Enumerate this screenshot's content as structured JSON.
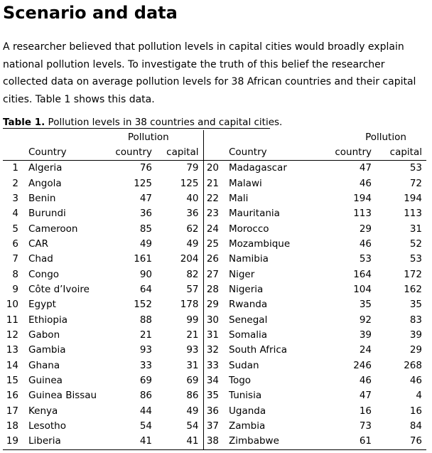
{
  "heading": "Scenario and data",
  "intro": "A researcher believed that pollution levels in capital cities would broadly explain national pollution levels. To investigate the truth of this belief the researcher collected data on average pollution levels for 38 African countries and their capital cities. Table 1 shows this data.",
  "table": {
    "caption_label": "Table 1.",
    "caption_text": " Pollution levels in 38 countries and capital cities.",
    "header_group": "Pollution",
    "col_country": "Country",
    "col_nat": "country",
    "col_cap": "capital",
    "left_rows": [
      {
        "n": "1",
        "name": "Algeria",
        "nat": "76",
        "cap": "79"
      },
      {
        "n": "2",
        "name": "Angola",
        "nat": "125",
        "cap": "125"
      },
      {
        "n": "3",
        "name": "Benin",
        "nat": "47",
        "cap": "40"
      },
      {
        "n": "4",
        "name": "Burundi",
        "nat": "36",
        "cap": "36"
      },
      {
        "n": "5",
        "name": "Cameroon",
        "nat": "85",
        "cap": "62"
      },
      {
        "n": "6",
        "name": "CAR",
        "nat": "49",
        "cap": "49"
      },
      {
        "n": "7",
        "name": "Chad",
        "nat": "161",
        "cap": "204"
      },
      {
        "n": "8",
        "name": "Congo",
        "nat": "90",
        "cap": "82"
      },
      {
        "n": "9",
        "name": "Côte d’Ivoire",
        "nat": "64",
        "cap": "57"
      },
      {
        "n": "10",
        "name": "Egypt",
        "nat": "152",
        "cap": "178"
      },
      {
        "n": "11",
        "name": "Ethiopia",
        "nat": "88",
        "cap": "99"
      },
      {
        "n": "12",
        "name": "Gabon",
        "nat": "21",
        "cap": "21"
      },
      {
        "n": "13",
        "name": "Gambia",
        "nat": "93",
        "cap": "93"
      },
      {
        "n": "14",
        "name": "Ghana",
        "nat": "33",
        "cap": "31"
      },
      {
        "n": "15",
        "name": "Guinea",
        "nat": "69",
        "cap": "69"
      },
      {
        "n": "16",
        "name": "Guinea Bissau",
        "nat": "86",
        "cap": "86"
      },
      {
        "n": "17",
        "name": "Kenya",
        "nat": "44",
        "cap": "49"
      },
      {
        "n": "18",
        "name": "Lesotho",
        "nat": "54",
        "cap": "54"
      },
      {
        "n": "19",
        "name": "Liberia",
        "nat": "41",
        "cap": "41"
      }
    ],
    "right_rows": [
      {
        "n": "20",
        "name": "Madagascar",
        "nat": "47",
        "cap": "53"
      },
      {
        "n": "21",
        "name": "Malawi",
        "nat": "46",
        "cap": "72"
      },
      {
        "n": "22",
        "name": "Mali",
        "nat": "194",
        "cap": "194"
      },
      {
        "n": "23",
        "name": "Mauritania",
        "nat": "113",
        "cap": "113"
      },
      {
        "n": "24",
        "name": "Morocco",
        "nat": "29",
        "cap": "31"
      },
      {
        "n": "25",
        "name": "Mozambique",
        "nat": "46",
        "cap": "52"
      },
      {
        "n": "26",
        "name": "Namibia",
        "nat": "53",
        "cap": "53"
      },
      {
        "n": "27",
        "name": "Niger",
        "nat": "164",
        "cap": "172"
      },
      {
        "n": "28",
        "name": "Nigeria",
        "nat": "104",
        "cap": "162"
      },
      {
        "n": "29",
        "name": "Rwanda",
        "nat": "35",
        "cap": "35"
      },
      {
        "n": "30",
        "name": "Senegal",
        "nat": "92",
        "cap": "83"
      },
      {
        "n": "31",
        "name": "Somalia",
        "nat": "39",
        "cap": "39"
      },
      {
        "n": "32",
        "name": "South Africa",
        "nat": "24",
        "cap": "29"
      },
      {
        "n": "33",
        "name": "Sudan",
        "nat": "246",
        "cap": "268"
      },
      {
        "n": "34",
        "name": "Togo",
        "nat": "46",
        "cap": "46"
      },
      {
        "n": "35",
        "name": "Tunisia",
        "nat": "47",
        "cap": "4"
      },
      {
        "n": "36",
        "name": "Uganda",
        "nat": "16",
        "cap": "16"
      },
      {
        "n": "37",
        "name": "Zambia",
        "nat": "73",
        "cap": "84"
      },
      {
        "n": "38",
        "name": "Zimbabwe",
        "nat": "61",
        "cap": "76"
      }
    ]
  }
}
